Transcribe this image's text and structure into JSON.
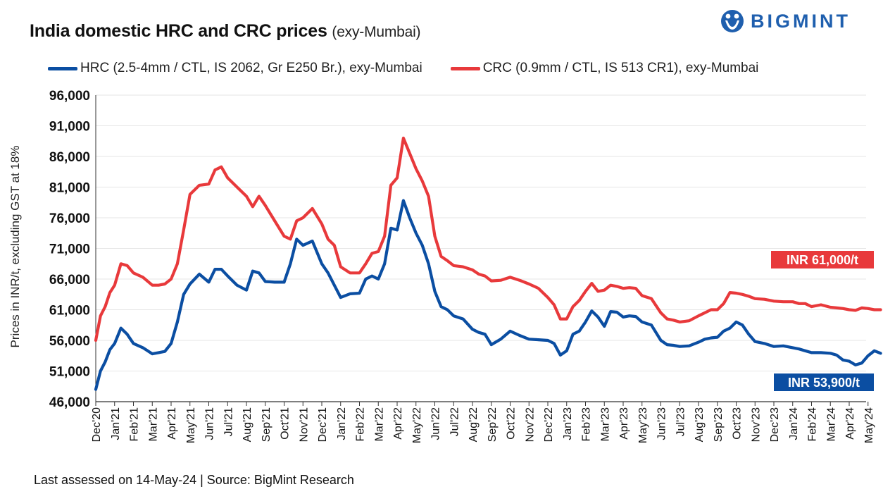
{
  "header": {
    "title": "India domestic HRC and CRC prices",
    "subtitle": "(exy-Mumbai)",
    "logo_text": "BIGMINT"
  },
  "footer": {
    "text": "Last assessed on 14-May-24  |  Source: BigMint Research"
  },
  "colors": {
    "hrc": "#0b4ea2",
    "crc": "#e8393b",
    "grid": "#e6e6e6",
    "logo": "#1f5fae"
  },
  "chart_data": {
    "type": "line",
    "ylabel": "Prices in INR/t, excluding GST at 18%",
    "xlabel": "",
    "ylim": [
      46000,
      96000
    ],
    "y_ticks": [
      "46,000",
      "51,000",
      "56,000",
      "61,000",
      "66,000",
      "71,000",
      "76,000",
      "81,000",
      "86,000",
      "91,000",
      "96,000"
    ],
    "x_tick_labels": [
      "Dec'20",
      "Jan'21",
      "Feb'21",
      "Mar'21",
      "Apr'21",
      "May'21",
      "Jun'21",
      "Jul'21",
      "Aug'21",
      "Sep'21",
      "Oct'21",
      "Nov'21",
      "Dec'21",
      "Jan'22",
      "Feb'22",
      "Mar'22",
      "Apr'22",
      "May'22",
      "Jun'22",
      "Jul'22",
      "Aug'22",
      "Sep'22",
      "Oct'22",
      "Nov'22",
      "Dec'22",
      "Jan'23",
      "Feb'23",
      "Mar'23",
      "Apr'23",
      "May'23",
      "Jun'23",
      "Jul'23",
      "Aug'23",
      "Sep'23",
      "Oct'23",
      "Nov'23",
      "Dec'23",
      "Jan'24",
      "Feb'24",
      "Mar'24",
      "Apr'24",
      "May'24"
    ],
    "grid": true,
    "legend_position": "top",
    "series": [
      {
        "name": "HRC (2.5-4mm / CTL, IS 2062, Gr E250 Br.), exy-Mumbai",
        "end_label": "INR 53,900/t",
        "points": [
          [
            "Dec'20",
            48000
          ],
          [
            "Dec'20",
            51000
          ],
          [
            "Dec'20",
            52500
          ],
          [
            "Dec'20",
            54500
          ],
          [
            "Jan'21",
            55500
          ],
          [
            "Jan'21",
            58000
          ],
          [
            "Jan'21",
            57000
          ],
          [
            "Feb'21",
            55500
          ],
          [
            "Feb'21",
            54800
          ],
          [
            "Mar'21",
            53800
          ],
          [
            "Mar'21",
            54000
          ],
          [
            "Mar'21",
            54200
          ],
          [
            "Apr'21",
            55500
          ],
          [
            "Apr'21",
            59000
          ],
          [
            "Apr'21",
            63500
          ],
          [
            "May'21",
            65200
          ],
          [
            "May'21",
            66800
          ],
          [
            "Jun'21",
            65500
          ],
          [
            "Jun'21",
            67600
          ],
          [
            "Jun'21",
            67600
          ],
          [
            "Jul'21",
            66500
          ],
          [
            "Jul'21",
            65000
          ],
          [
            "Aug'21",
            64200
          ],
          [
            "Aug'21",
            67300
          ],
          [
            "Aug'21",
            67000
          ],
          [
            "Sep'21",
            65600
          ],
          [
            "Sep'21",
            65500
          ],
          [
            "Oct'21",
            65500
          ],
          [
            "Oct'21",
            68500
          ],
          [
            "Oct'21",
            72500
          ],
          [
            "Nov'21",
            71500
          ],
          [
            "Nov'21",
            72200
          ],
          [
            "Dec'21",
            68500
          ],
          [
            "Dec'21",
            67000
          ],
          [
            "Dec'21",
            65000
          ],
          [
            "Jan'22",
            63000
          ],
          [
            "Jan'22",
            63600
          ],
          [
            "Feb'22",
            63700
          ],
          [
            "Feb'22",
            66000
          ],
          [
            "Feb'22",
            66500
          ],
          [
            "Mar'22",
            66000
          ],
          [
            "Mar'22",
            68500
          ],
          [
            "Mar'22",
            74300
          ],
          [
            "Apr'22",
            74000
          ],
          [
            "Apr'22",
            78800
          ],
          [
            "Apr'22",
            76000
          ],
          [
            "May'22",
            73500
          ],
          [
            "May'22",
            71500
          ],
          [
            "May'22",
            68500
          ],
          [
            "Jun'22",
            64000
          ],
          [
            "Jun'22",
            61500
          ],
          [
            "Jun'22",
            61000
          ],
          [
            "Jul'22",
            60000
          ],
          [
            "Jul'22",
            59500
          ],
          [
            "Aug'22",
            57800
          ],
          [
            "Aug'22",
            57300
          ],
          [
            "Aug'22",
            57000
          ],
          [
            "Sep'22",
            55300
          ],
          [
            "Sep'22",
            56200
          ],
          [
            "Oct'22",
            57500
          ],
          [
            "Oct'22",
            56800
          ],
          [
            "Nov'22",
            56200
          ],
          [
            "Nov'22",
            56100
          ],
          [
            "Dec'22",
            56000
          ],
          [
            "Dec'22",
            55500
          ],
          [
            "Dec'22",
            53600
          ],
          [
            "Jan'23",
            54300
          ],
          [
            "Jan'23",
            57000
          ],
          [
            "Jan'23",
            57500
          ],
          [
            "Feb'23",
            59000
          ],
          [
            "Feb'23",
            60800
          ],
          [
            "Feb'23",
            59800
          ],
          [
            "Mar'23",
            58300
          ],
          [
            "Mar'23",
            60700
          ],
          [
            "Mar'23",
            60600
          ],
          [
            "Apr'23",
            59800
          ],
          [
            "Apr'23",
            60000
          ],
          [
            "Apr'23",
            59900
          ],
          [
            "May'23",
            59000
          ],
          [
            "May'23",
            58500
          ],
          [
            "Jun'23",
            56000
          ],
          [
            "Jun'23",
            55300
          ],
          [
            "Jun'23",
            55200
          ],
          [
            "Jul'23",
            55000
          ],
          [
            "Jul'23",
            55100
          ],
          [
            "Aug'23",
            55700
          ],
          [
            "Aug'23",
            56200
          ],
          [
            "Aug'23",
            56400
          ],
          [
            "Sep'23",
            56500
          ],
          [
            "Sep'23",
            57500
          ],
          [
            "Sep'23",
            58000
          ],
          [
            "Oct'23",
            59000
          ],
          [
            "Oct'23",
            58500
          ],
          [
            "Oct'23",
            57000
          ],
          [
            "Nov'23",
            55800
          ],
          [
            "Nov'23",
            55500
          ],
          [
            "Dec'23",
            55000
          ],
          [
            "Dec'23",
            55100
          ],
          [
            "Jan'24",
            54800
          ],
          [
            "Jan'24",
            54600
          ],
          [
            "Jan'24",
            54300
          ],
          [
            "Feb'24",
            54000
          ],
          [
            "Feb'24",
            54000
          ],
          [
            "Mar'24",
            53900
          ],
          [
            "Mar'24",
            53600
          ],
          [
            "Mar'24",
            52800
          ],
          [
            "Apr'24",
            52600
          ],
          [
            "Apr'24",
            52000
          ],
          [
            "Apr'24",
            52300
          ],
          [
            "May'24",
            53500
          ],
          [
            "May'24",
            54300
          ],
          [
            "May'24",
            53900
          ]
        ]
      },
      {
        "name": "CRC (0.9mm / CTL, IS 513 CR1), exy-Mumbai",
        "end_label": "INR 61,000/t",
        "points": [
          [
            "Dec'20",
            56000
          ],
          [
            "Dec'20",
            60000
          ],
          [
            "Dec'20",
            61500
          ],
          [
            "Dec'20",
            63800
          ],
          [
            "Jan'21",
            65000
          ],
          [
            "Jan'21",
            68500
          ],
          [
            "Jan'21",
            68200
          ],
          [
            "Feb'21",
            67000
          ],
          [
            "Feb'21",
            66300
          ],
          [
            "Mar'21",
            65000
          ],
          [
            "Mar'21",
            65000
          ],
          [
            "Mar'21",
            65200
          ],
          [
            "Apr'21",
            66000
          ],
          [
            "Apr'21",
            68500
          ],
          [
            "Apr'21",
            74000
          ],
          [
            "May'21",
            79800
          ],
          [
            "May'21",
            81300
          ],
          [
            "Jun'21",
            81500
          ],
          [
            "Jun'21",
            83800
          ],
          [
            "Jun'21",
            84300
          ],
          [
            "Jul'21",
            82500
          ],
          [
            "Jul'21",
            81000
          ],
          [
            "Aug'21",
            79500
          ],
          [
            "Aug'21",
            77800
          ],
          [
            "Aug'21",
            79500
          ],
          [
            "Sep'21",
            78000
          ],
          [
            "Sep'21",
            75500
          ],
          [
            "Oct'21",
            73000
          ],
          [
            "Oct'21",
            72500
          ],
          [
            "Oct'21",
            75500
          ],
          [
            "Nov'21",
            76000
          ],
          [
            "Nov'21",
            77500
          ],
          [
            "Dec'21",
            75000
          ],
          [
            "Dec'21",
            72500
          ],
          [
            "Dec'21",
            71500
          ],
          [
            "Jan'22",
            68000
          ],
          [
            "Jan'22",
            67000
          ],
          [
            "Feb'22",
            67000
          ],
          [
            "Feb'22",
            68500
          ],
          [
            "Feb'22",
            70200
          ],
          [
            "Mar'22",
            70500
          ],
          [
            "Mar'22",
            73000
          ],
          [
            "Mar'22",
            81300
          ],
          [
            "Apr'22",
            82500
          ],
          [
            "Apr'22",
            89000
          ],
          [
            "Apr'22",
            86500
          ],
          [
            "May'22",
            84000
          ],
          [
            "May'22",
            82000
          ],
          [
            "May'22",
            79500
          ],
          [
            "Jun'22",
            73000
          ],
          [
            "Jun'22",
            69700
          ],
          [
            "Jun'22",
            69000
          ],
          [
            "Jul'22",
            68200
          ],
          [
            "Jul'22",
            68000
          ],
          [
            "Aug'22",
            67500
          ],
          [
            "Aug'22",
            66800
          ],
          [
            "Aug'22",
            66500
          ],
          [
            "Sep'22",
            65700
          ],
          [
            "Sep'22",
            65800
          ],
          [
            "Oct'22",
            66300
          ],
          [
            "Oct'22",
            65800
          ],
          [
            "Nov'22",
            65200
          ],
          [
            "Nov'22",
            64500
          ],
          [
            "Dec'22",
            63000
          ],
          [
            "Dec'22",
            61800
          ],
          [
            "Dec'22",
            59500
          ],
          [
            "Jan'23",
            59500
          ],
          [
            "Jan'23",
            61500
          ],
          [
            "Jan'23",
            62500
          ],
          [
            "Feb'23",
            64000
          ],
          [
            "Feb'23",
            65300
          ],
          [
            "Feb'23",
            64000
          ],
          [
            "Mar'23",
            64200
          ],
          [
            "Mar'23",
            65000
          ],
          [
            "Mar'23",
            64800
          ],
          [
            "Apr'23",
            64500
          ],
          [
            "Apr'23",
            64600
          ],
          [
            "Apr'23",
            64500
          ],
          [
            "May'23",
            63300
          ],
          [
            "May'23",
            62800
          ],
          [
            "Jun'23",
            60500
          ],
          [
            "Jun'23",
            59500
          ],
          [
            "Jun'23",
            59300
          ],
          [
            "Jul'23",
            59000
          ],
          [
            "Jul'23",
            59200
          ],
          [
            "Aug'23",
            60000
          ],
          [
            "Aug'23",
            60500
          ],
          [
            "Aug'23",
            61000
          ],
          [
            "Sep'23",
            61000
          ],
          [
            "Sep'23",
            62000
          ],
          [
            "Sep'23",
            63800
          ],
          [
            "Oct'23",
            63700
          ],
          [
            "Oct'23",
            63500
          ],
          [
            "Oct'23",
            63200
          ],
          [
            "Nov'23",
            62800
          ],
          [
            "Nov'23",
            62700
          ],
          [
            "Dec'23",
            62400
          ],
          [
            "Dec'23",
            62300
          ],
          [
            "Jan'24",
            62300
          ],
          [
            "Jan'24",
            62000
          ],
          [
            "Jan'24",
            62000
          ],
          [
            "Feb'24",
            61500
          ],
          [
            "Feb'24",
            61800
          ],
          [
            "Mar'24",
            61400
          ],
          [
            "Mar'24",
            61300
          ],
          [
            "Mar'24",
            61200
          ],
          [
            "Apr'24",
            61000
          ],
          [
            "Apr'24",
            60900
          ],
          [
            "Apr'24",
            61300
          ],
          [
            "May'24",
            61200
          ],
          [
            "May'24",
            61000
          ],
          [
            "May'24",
            61000
          ]
        ]
      }
    ]
  }
}
